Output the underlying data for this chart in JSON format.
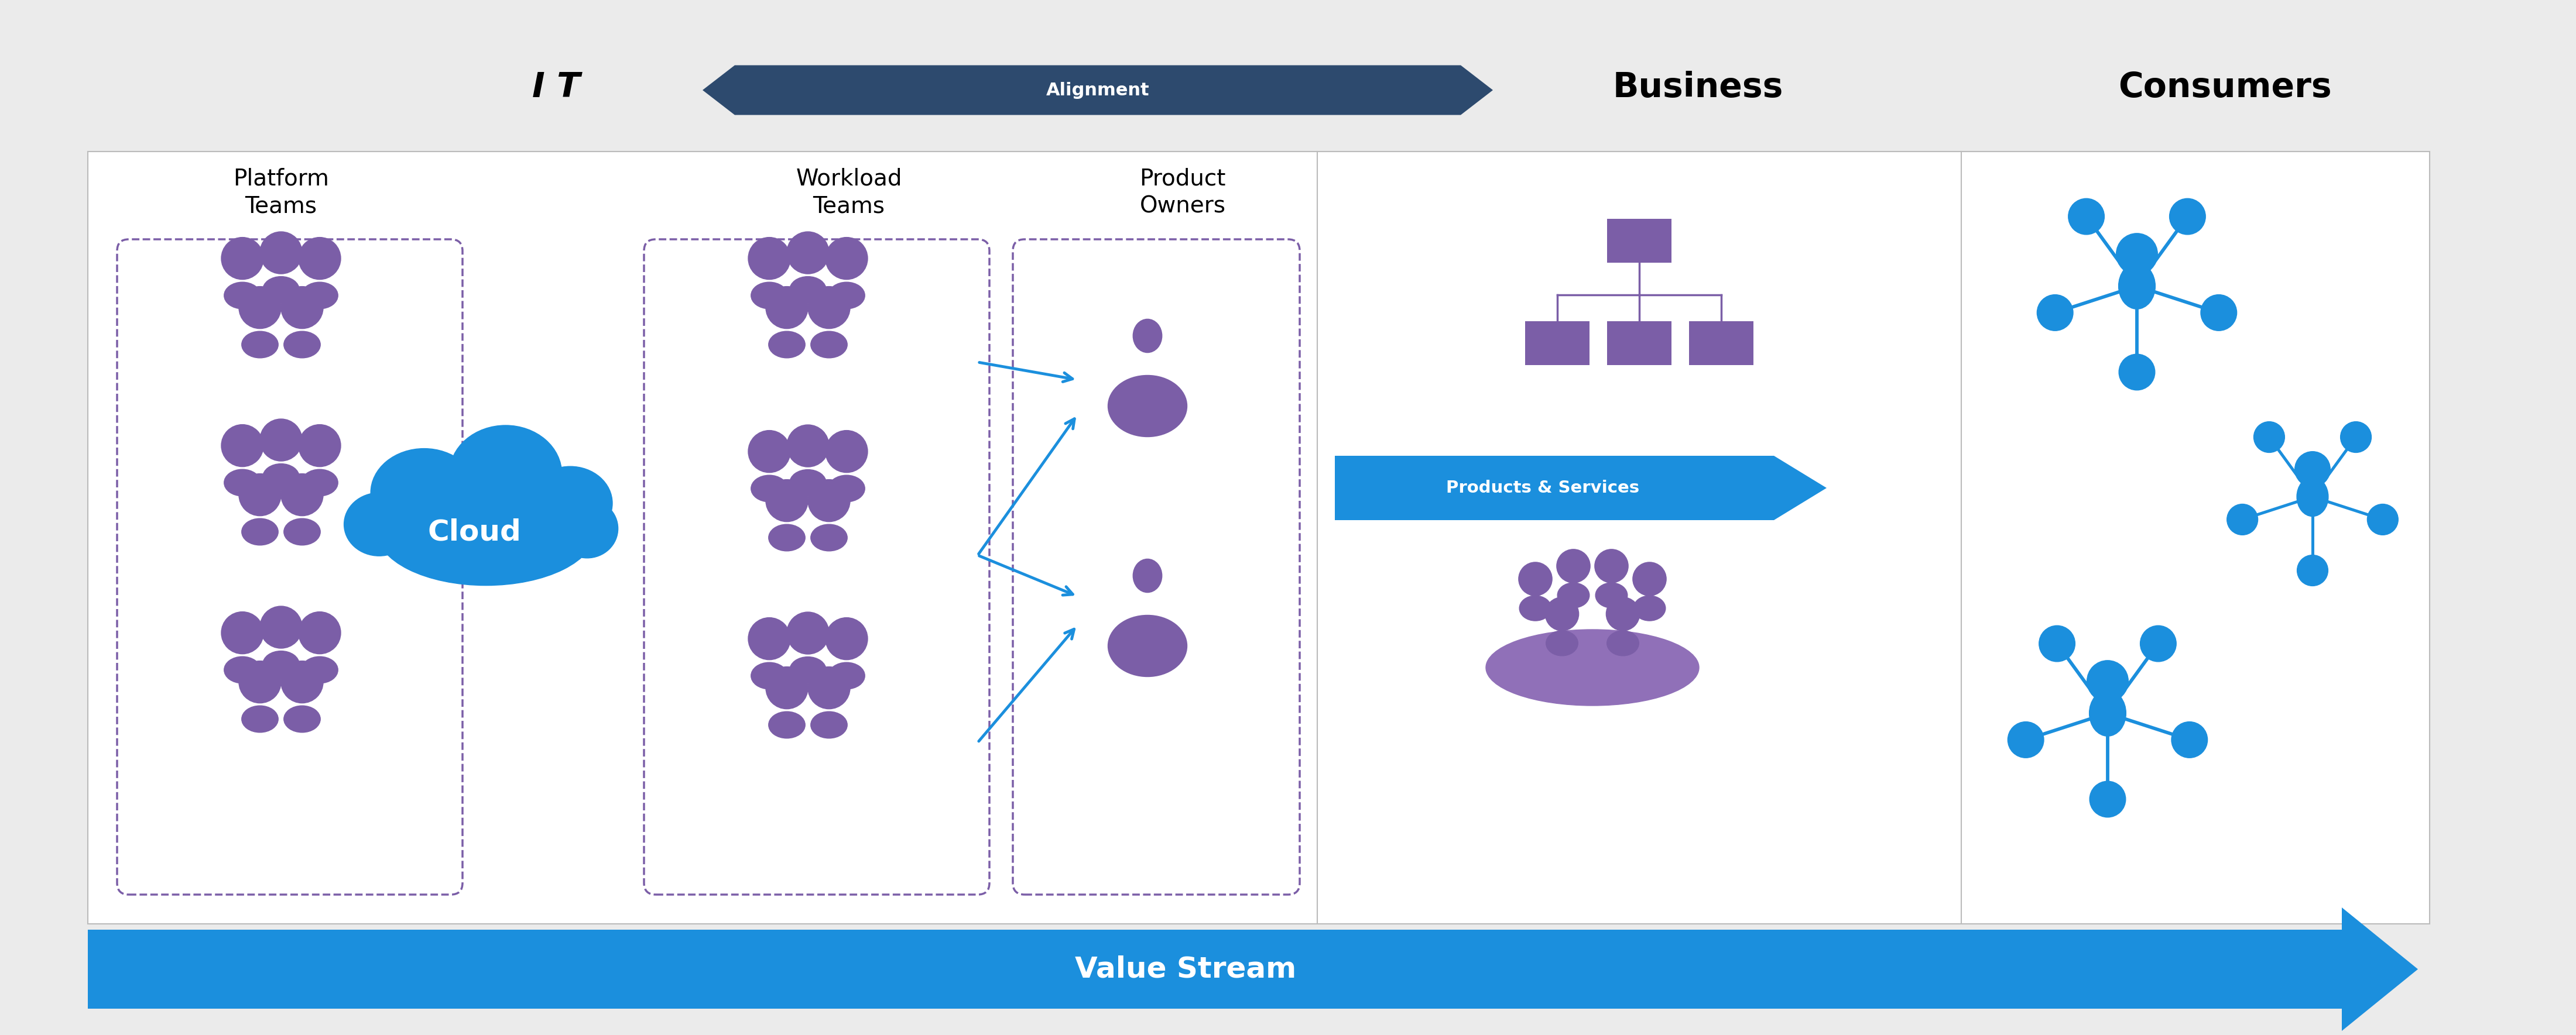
{
  "bg_color": "#ebebeb",
  "main_box_color": "#ffffff",
  "main_box_border": "#bbbbbb",
  "dashed_box_color": "#7b5ea7",
  "cloud_color": "#1b8fdd",
  "alignment_arrow_color": "#2d4a6e",
  "alignment_label": "Alignment",
  "value_stream_color": "#1b8fdd",
  "value_stream_label": "Value Stream",
  "products_services_color": "#1b8fdd",
  "products_services_label": "Products & Services",
  "it_label": "I T",
  "business_label": "Business",
  "consumers_label": "Consumers",
  "platform_teams_label": "Platform\nTeams",
  "workload_teams_label": "Workload\nTeams",
  "product_owners_label": "Product\nOwners",
  "cloud_label": "Cloud",
  "purple_color": "#7b5ea7",
  "blue_color": "#1b8fdd",
  "dark_navy": "#2d4a6e",
  "hub_blue": "#1b8fdd"
}
